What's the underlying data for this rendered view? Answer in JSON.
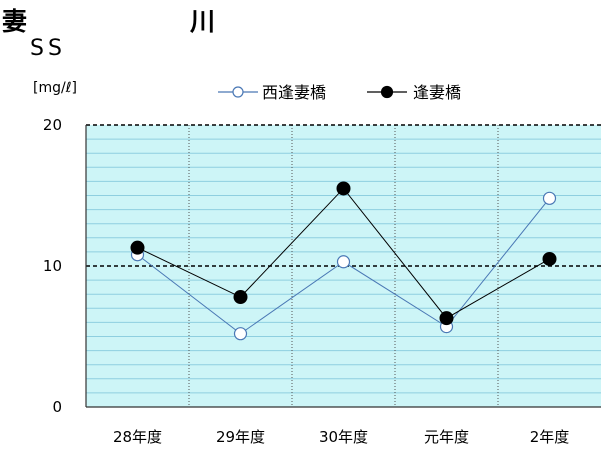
{
  "header": {
    "river_char_1": "妻",
    "river_char_2": "川",
    "parameter": "SS",
    "unit": "[mg/ℓ]"
  },
  "chart_data": {
    "type": "line",
    "categories": [
      "28年度",
      "29年度",
      "30年度",
      "元年度",
      "2年度"
    ],
    "series": [
      {
        "name": "西逢妻橋",
        "values": [
          10.8,
          5.2,
          10.3,
          5.7,
          14.8
        ],
        "color": "#4a78b5",
        "marker": "open-circle"
      },
      {
        "name": "逢妻橋",
        "values": [
          11.3,
          7.8,
          15.5,
          6.3,
          10.5
        ],
        "color": "#000000",
        "marker": "filled-circle"
      }
    ],
    "yticks": [
      0,
      10,
      20
    ],
    "ylim": [
      0,
      20
    ],
    "reference_line": 10,
    "legend_position": "top-center",
    "grid": true,
    "background_color": "#cdf5f7",
    "grid_color": "#8ecfe0"
  }
}
